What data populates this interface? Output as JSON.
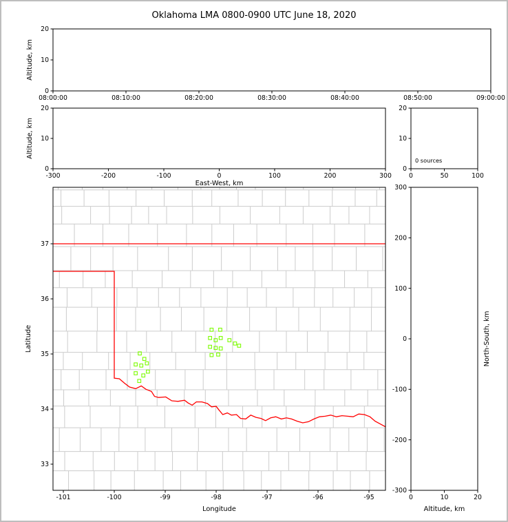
{
  "title": "Oklahoma LMA 0800-0900 UTC June 18, 2020",
  "colors": {
    "state_border": "#ff0000",
    "county": "#cccccc",
    "source": "#7cfc00",
    "axis": "#000000",
    "background": "#ffffff",
    "frame": "#bdbdbd"
  },
  "chart_data": [
    {
      "id": "time_height",
      "type": "scatter",
      "xlim": [
        0,
        3600
      ],
      "xticks": [
        0,
        600,
        1200,
        1800,
        2400,
        3000,
        3600
      ],
      "xtick_labels": [
        "08:00:00",
        "08:10:00",
        "08:20:00",
        "08:30:00",
        "08:40:00",
        "08:50:00",
        "09:00:00"
      ],
      "ylim": [
        0,
        20
      ],
      "yticks": [
        0,
        10,
        20
      ],
      "ytick_labels": [
        "0",
        "10",
        "20"
      ],
      "xlabel": "",
      "ylabel": "Altitude, km",
      "points": []
    },
    {
      "id": "ew_height",
      "type": "scatter",
      "xlim": [
        -300,
        300
      ],
      "xticks": [
        -300,
        -200,
        -100,
        0,
        100,
        200,
        300
      ],
      "xtick_labels": [
        "-300",
        "-200",
        "-100",
        "0",
        "100",
        "200",
        "300"
      ],
      "ylim": [
        0,
        20
      ],
      "yticks": [
        0,
        10,
        20
      ],
      "ytick_labels": [
        "0",
        "10",
        "20"
      ],
      "xlabel": "East-West, km",
      "ylabel": "Altitude, km",
      "points": []
    },
    {
      "id": "alt_histogram",
      "type": "bar",
      "xlim": [
        0,
        100
      ],
      "xticks": [
        0,
        50,
        100
      ],
      "xtick_labels": [
        "0",
        "50",
        "100"
      ],
      "ylim": [
        0,
        20
      ],
      "yticks": [
        0,
        10,
        20
      ],
      "ytick_labels": [
        "0",
        "10",
        "20"
      ],
      "xlabel": "",
      "annotation": "0 sources",
      "values": []
    },
    {
      "id": "plan_view",
      "type": "scatter",
      "xlim": [
        -101.203,
        -94.676
      ],
      "xticks": [
        -101,
        -100,
        -99,
        -98,
        -97,
        -96,
        -95
      ],
      "xtick_labels": [
        "-101",
        "-100",
        "-99",
        "-98",
        "-97",
        "-96",
        "-95"
      ],
      "ylim": [
        32.525,
        38.025
      ],
      "yticks": [
        33,
        34,
        35,
        36,
        37
      ],
      "ytick_labels": [
        "33",
        "34",
        "35",
        "36",
        "37"
      ],
      "xlabel": "Longitude",
      "ylabel": "Latitude",
      "county_grid": {
        "lon_min": -101.25,
        "lon_max": -94.6,
        "lat_min": 32.5,
        "lat_max": 38.05,
        "row_step": 0.36,
        "col_step": 0.47,
        "seed": 42
      },
      "state_outline": [
        [
          [
            -101.25,
            37.0
          ],
          [
            -94.6,
            37.0
          ]
        ],
        [
          [
            -101.25,
            36.5
          ],
          [
            -100.0,
            36.5
          ],
          [
            -100.0,
            34.56
          ],
          [
            -99.9,
            34.55
          ],
          [
            -99.8,
            34.47
          ],
          [
            -99.7,
            34.4
          ],
          [
            -99.58,
            34.37
          ],
          [
            -99.47,
            34.42
          ],
          [
            -99.38,
            34.36
          ],
          [
            -99.27,
            34.32
          ],
          [
            -99.21,
            34.23
          ],
          [
            -99.13,
            34.21
          ],
          [
            -98.99,
            34.22
          ],
          [
            -98.87,
            34.15
          ],
          [
            -98.75,
            34.14
          ],
          [
            -98.62,
            34.16
          ],
          [
            -98.55,
            34.11
          ],
          [
            -98.47,
            34.07
          ],
          [
            -98.39,
            34.13
          ],
          [
            -98.28,
            34.13
          ],
          [
            -98.17,
            34.1
          ],
          [
            -98.09,
            34.04
          ],
          [
            -98.0,
            34.05
          ],
          [
            -97.95,
            33.99
          ],
          [
            -97.87,
            33.9
          ],
          [
            -97.78,
            33.93
          ],
          [
            -97.7,
            33.89
          ],
          [
            -97.6,
            33.9
          ],
          [
            -97.52,
            33.83
          ],
          [
            -97.42,
            33.82
          ],
          [
            -97.32,
            33.89
          ],
          [
            -97.22,
            33.85
          ],
          [
            -97.12,
            33.83
          ],
          [
            -97.03,
            33.79
          ],
          [
            -96.93,
            33.84
          ],
          [
            -96.83,
            33.86
          ],
          [
            -96.72,
            33.82
          ],
          [
            -96.62,
            33.84
          ],
          [
            -96.52,
            33.82
          ],
          [
            -96.41,
            33.78
          ],
          [
            -96.3,
            33.75
          ],
          [
            -96.19,
            33.77
          ],
          [
            -96.08,
            33.82
          ],
          [
            -95.97,
            33.86
          ],
          [
            -95.86,
            33.87
          ],
          [
            -95.75,
            33.89
          ],
          [
            -95.64,
            33.86
          ],
          [
            -95.53,
            33.88
          ],
          [
            -95.42,
            33.87
          ],
          [
            -95.31,
            33.86
          ],
          [
            -95.2,
            33.91
          ],
          [
            -95.09,
            33.9
          ],
          [
            -94.98,
            33.86
          ],
          [
            -94.88,
            33.78
          ],
          [
            -94.78,
            33.73
          ],
          [
            -94.68,
            33.68
          ],
          [
            -94.6,
            33.66
          ]
        ]
      ],
      "sources": [
        [
          -98.09,
          35.44
        ],
        [
          -97.92,
          35.44
        ],
        [
          -98.12,
          35.29
        ],
        [
          -98.01,
          35.25
        ],
        [
          -97.91,
          35.29
        ],
        [
          -98.12,
          35.13
        ],
        [
          -98.01,
          35.11
        ],
        [
          -97.91,
          35.1
        ],
        [
          -98.09,
          34.98
        ],
        [
          -97.96,
          34.99
        ],
        [
          -97.74,
          35.25
        ],
        [
          -97.63,
          35.19
        ],
        [
          -97.55,
          35.15
        ],
        [
          -99.5,
          35.01
        ],
        [
          -99.41,
          34.91
        ],
        [
          -99.58,
          34.81
        ],
        [
          -99.47,
          34.79
        ],
        [
          -99.36,
          34.83
        ],
        [
          -99.58,
          34.65
        ],
        [
          -99.43,
          34.61
        ],
        [
          -99.34,
          34.68
        ],
        [
          -99.51,
          34.51
        ]
      ]
    },
    {
      "id": "ns_height",
      "type": "scatter",
      "xlim": [
        0,
        20
      ],
      "xticks": [
        0,
        10,
        20
      ],
      "xtick_labels": [
        "0",
        "10",
        "20"
      ],
      "ylim": [
        -300,
        300
      ],
      "yticks": [
        -300,
        -200,
        -100,
        0,
        100,
        200,
        300
      ],
      "ytick_labels": [
        "-300",
        "-200",
        "-100",
        "0",
        "100",
        "200",
        "300"
      ],
      "xlabel": "Altitude, km",
      "ylabel_right": "North-South, km",
      "points": []
    }
  ]
}
